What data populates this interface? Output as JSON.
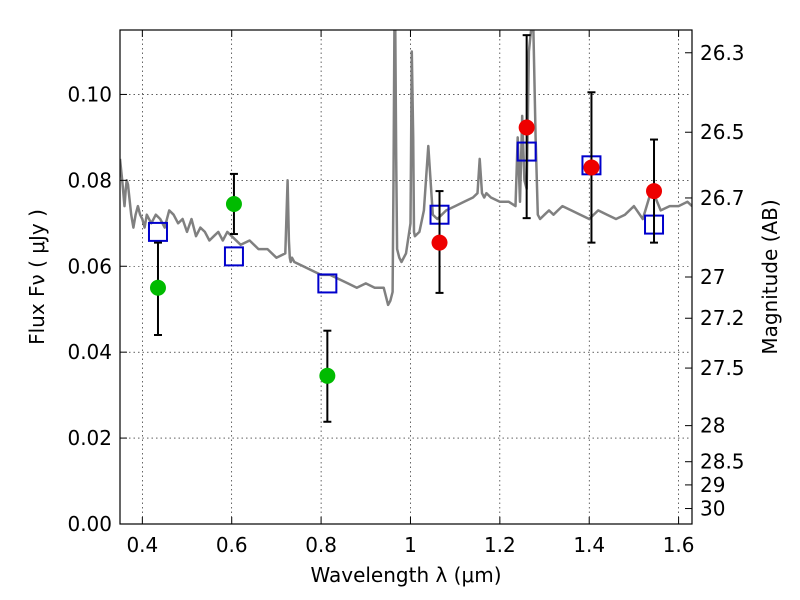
{
  "chart_data": {
    "type": "scatter",
    "title": "",
    "xlabel": "Wavelength  λ (μm)",
    "ylabel": "Flux  Fν  ( μJy )",
    "ylabel_right": "Magnitude (AB)",
    "xlim": [
      0.35,
      1.63
    ],
    "ylim": [
      0.0,
      0.115
    ],
    "grid": true,
    "legend": "none",
    "x_ticks": [
      0.4,
      0.6,
      0.8,
      1.0,
      1.2,
      1.4,
      1.6
    ],
    "x_tick_labels": [
      "0.4",
      "0.6",
      "0.8",
      "1",
      "1.2",
      "1.4",
      "1.6"
    ],
    "y_ticks": [
      0.0,
      0.02,
      0.04,
      0.06,
      0.08,
      0.1
    ],
    "y_tick_labels": [
      "0.00",
      "0.02",
      "0.04",
      "0.06",
      "0.08",
      "0.10"
    ],
    "right_ticks": [
      {
        "label": "26.3",
        "flux": 0.1097
      },
      {
        "label": "26.5",
        "flux": 0.0912
      },
      {
        "label": "26.7",
        "flux": 0.0759
      },
      {
        "label": "27",
        "flux": 0.0575
      },
      {
        "label": "27.2",
        "flux": 0.0479
      },
      {
        "label": "27.5",
        "flux": 0.0363
      },
      {
        "label": "28",
        "flux": 0.0229
      },
      {
        "label": "28.5",
        "flux": 0.0145
      },
      {
        "label": "29",
        "flux": 0.0091
      },
      {
        "label": "30",
        "flux": 0.0036
      }
    ],
    "series": [
      {
        "marker": "circle",
        "color": "#00bb00",
        "points": [
          {
            "x": 0.435,
            "y": 0.055,
            "err_low": 0.044,
            "err_high": 0.0655
          },
          {
            "x": 0.605,
            "y": 0.0745,
            "err_low": 0.0675,
            "err_high": 0.0815
          },
          {
            "x": 0.814,
            "y": 0.0345,
            "err_low": 0.0238,
            "err_high": 0.045
          }
        ]
      },
      {
        "marker": "circle",
        "color": "#ee0000",
        "points": [
          {
            "x": 1.065,
            "y": 0.0655,
            "err_low": 0.0538,
            "err_high": 0.0775
          },
          {
            "x": 1.26,
            "y": 0.0923,
            "err_low": 0.0712,
            "err_high": 0.1138
          },
          {
            "x": 1.405,
            "y": 0.083,
            "err_low": 0.0655,
            "err_high": 0.1005
          },
          {
            "x": 1.545,
            "y": 0.0775,
            "err_low": 0.0655,
            "err_high": 0.0895
          }
        ]
      },
      {
        "marker": "open-square",
        "color": "#0000cc",
        "points": [
          {
            "x": 0.435,
            "y": 0.068
          },
          {
            "x": 0.605,
            "y": 0.0623
          },
          {
            "x": 0.814,
            "y": 0.056
          },
          {
            "x": 1.065,
            "y": 0.072
          },
          {
            "x": 1.26,
            "y": 0.0867
          },
          {
            "x": 1.405,
            "y": 0.0835
          },
          {
            "x": 1.545,
            "y": 0.0697
          }
        ]
      }
    ],
    "model_spectrum": {
      "color": "#808080",
      "x": [
        0.35,
        0.355,
        0.36,
        0.363,
        0.365,
        0.368,
        0.37,
        0.375,
        0.38,
        0.385,
        0.39,
        0.395,
        0.4,
        0.405,
        0.41,
        0.42,
        0.43,
        0.44,
        0.45,
        0.46,
        0.47,
        0.48,
        0.49,
        0.5,
        0.51,
        0.52,
        0.53,
        0.54,
        0.55,
        0.56,
        0.57,
        0.58,
        0.59,
        0.6,
        0.62,
        0.64,
        0.66,
        0.68,
        0.7,
        0.72,
        0.725,
        0.728,
        0.73,
        0.732,
        0.735,
        0.74,
        0.76,
        0.78,
        0.8,
        0.82,
        0.84,
        0.86,
        0.88,
        0.9,
        0.92,
        0.94,
        0.95,
        0.955,
        0.96,
        0.962,
        0.964,
        0.966,
        0.968,
        0.97,
        0.975,
        0.98,
        0.99,
        1.0,
        1.003,
        1.006,
        1.008,
        1.01,
        1.02,
        1.03,
        1.04,
        1.05,
        1.06,
        1.07,
        1.08,
        1.1,
        1.12,
        1.14,
        1.15,
        1.155,
        1.16,
        1.165,
        1.17,
        1.18,
        1.2,
        1.22,
        1.235,
        1.24,
        1.245,
        1.25,
        1.255,
        1.26,
        1.265,
        1.27,
        1.275,
        1.28,
        1.285,
        1.29,
        1.3,
        1.31,
        1.32,
        1.33,
        1.34,
        1.36,
        1.38,
        1.4,
        1.42,
        1.44,
        1.46,
        1.48,
        1.5,
        1.52,
        1.54,
        1.56,
        1.58,
        1.6,
        1.62,
        1.63
      ],
      "y": [
        0.085,
        0.08,
        0.074,
        0.078,
        0.08,
        0.079,
        0.077,
        0.072,
        0.069,
        0.072,
        0.074,
        0.072,
        0.071,
        0.069,
        0.072,
        0.07,
        0.072,
        0.071,
        0.069,
        0.073,
        0.072,
        0.07,
        0.071,
        0.068,
        0.071,
        0.067,
        0.069,
        0.068,
        0.066,
        0.067,
        0.068,
        0.066,
        0.068,
        0.067,
        0.065,
        0.066,
        0.064,
        0.064,
        0.062,
        0.063,
        0.08,
        0.066,
        0.062,
        0.061,
        0.062,
        0.061,
        0.06,
        0.059,
        0.058,
        0.058,
        0.057,
        0.056,
        0.055,
        0.056,
        0.055,
        0.055,
        0.051,
        0.052,
        0.054,
        0.08,
        0.115,
        0.115,
        0.085,
        0.064,
        0.062,
        0.061,
        0.063,
        0.07,
        0.11,
        0.09,
        0.068,
        0.067,
        0.068,
        0.073,
        0.088,
        0.072,
        0.071,
        0.072,
        0.073,
        0.074,
        0.075,
        0.076,
        0.077,
        0.085,
        0.077,
        0.076,
        0.077,
        0.076,
        0.075,
        0.075,
        0.074,
        0.09,
        0.075,
        0.095,
        0.08,
        0.078,
        0.11,
        0.115,
        0.115,
        0.09,
        0.072,
        0.071,
        0.072,
        0.073,
        0.072,
        0.073,
        0.074,
        0.073,
        0.072,
        0.071,
        0.073,
        0.072,
        0.071,
        0.072,
        0.074,
        0.071,
        0.078,
        0.073,
        0.074,
        0.074,
        0.075,
        0.074
      ]
    }
  }
}
